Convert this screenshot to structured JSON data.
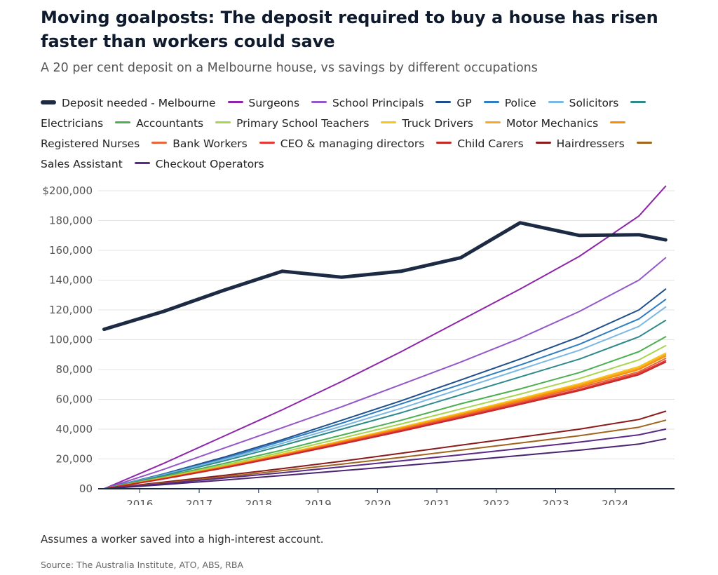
{
  "header": {
    "title": "Moving goalposts: The deposit required to buy a house has risen faster than workers could save",
    "subtitle": "A 20 per cent deposit on a Melbourne house, vs savings by different occupations"
  },
  "footer": {
    "note": "Assumes a worker saved into a high-interest account.",
    "source": "Source: The Australia Institute, ATO, ABS, RBA"
  },
  "chart_data": {
    "type": "line",
    "title": "Moving goalposts: The deposit required to buy a house has risen faster than workers could save",
    "subtitle": "A 20 per cent deposit on a Melbourne house, vs savings by different occupations",
    "xlabel": "",
    "ylabel": "",
    "xlim": [
      2015.3,
      2025.0
    ],
    "ylim": [
      0,
      200000
    ],
    "x_ticks": [
      "2016",
      "2017",
      "2018",
      "2019",
      "2020",
      "2021",
      "2022",
      "2023",
      "2024"
    ],
    "y_ticks": [
      "00",
      "20,000",
      "40,000",
      "60,000",
      "80,000",
      "100,000",
      "120,000",
      "140,000",
      "160,000",
      "180,000",
      "$200,000"
    ],
    "grid": "horizontal",
    "legend_position": "top",
    "x": [
      2015.4,
      2016.4,
      2017.4,
      2018.4,
      2019.4,
      2020.4,
      2021.4,
      2022.4,
      2023.4,
      2024.4,
      2024.85
    ],
    "series": [
      {
        "name": "Deposit needed - Melbourne",
        "color": "#1c2a44",
        "width": 5,
        "values": [
          107000,
          119000,
          133000,
          146000,
          142000,
          146000,
          155000,
          178500,
          170000,
          170500,
          167000
        ]
      },
      {
        "name": "Surgeons",
        "color": "#8e24aa",
        "width": 2,
        "values": [
          0,
          17000,
          35000,
          53000,
          72000,
          92000,
          113000,
          134000,
          156000,
          183000,
          203000
        ]
      },
      {
        "name": "School Principals",
        "color": "#9457c9",
        "width": 2,
        "values": [
          0,
          13000,
          27000,
          41000,
          55000,
          70000,
          85000,
          101000,
          119000,
          140000,
          155000
        ]
      },
      {
        "name": "GP",
        "color": "#1f4e8c",
        "width": 2,
        "values": [
          0,
          10000,
          21000,
          33000,
          46000,
          59000,
          73000,
          87000,
          102000,
          120000,
          134000
        ]
      },
      {
        "name": "Police",
        "color": "#2f7ec2",
        "width": 2,
        "values": [
          0,
          9700,
          20000,
          32000,
          44000,
          57000,
          70000,
          83000,
          97000,
          114000,
          127000
        ]
      },
      {
        "name": "Solicitors",
        "color": "#7ab8e3",
        "width": 2,
        "values": [
          0,
          9300,
          19500,
          30500,
          42000,
          54000,
          67000,
          80000,
          93000,
          109000,
          122000
        ]
      },
      {
        "name": "Electricians",
        "color": "#2e8a8a",
        "width": 2,
        "values": [
          0,
          8800,
          18500,
          29000,
          40000,
          51000,
          63000,
          75000,
          87000,
          102000,
          113000
        ]
      },
      {
        "name": "Accountants",
        "color": "#4caf50",
        "width": 2,
        "values": [
          0,
          8000,
          16800,
          26000,
          36000,
          46000,
          57000,
          67000,
          78000,
          92000,
          102000
        ]
      },
      {
        "name": "Primary School Teachers",
        "color": "#a8d44e",
        "width": 2,
        "values": [
          0,
          7500,
          15700,
          24500,
          34000,
          43500,
          53500,
          63500,
          74000,
          86500,
          96000
        ]
      },
      {
        "name": "Truck Drivers",
        "color": "#f5c518",
        "width": 2,
        "values": [
          0,
          7100,
          14900,
          23300,
          32200,
          41300,
          50800,
          60500,
          70500,
          82000,
          91000
        ]
      },
      {
        "name": "Motor Mechanics",
        "color": "#f9a825",
        "width": 2,
        "values": [
          0,
          7000,
          14700,
          23000,
          31800,
          40800,
          50200,
          59800,
          69700,
          81000,
          90000
        ]
      },
      {
        "name": "Registered Nurses",
        "color": "#fb8c00",
        "width": 2,
        "values": [
          0,
          6900,
          14500,
          22700,
          31400,
          40300,
          49600,
          59100,
          68800,
          80000,
          89000
        ]
      },
      {
        "name": "Bank Workers",
        "color": "#e8663d",
        "width": 2,
        "values": [
          0,
          6800,
          14300,
          22300,
          30900,
          39700,
          48900,
          58200,
          67800,
          78500,
          87500
        ]
      },
      {
        "name": "CEO & managing directors",
        "color": "#e53935",
        "width": 2,
        "values": [
          0,
          6700,
          14000,
          22000,
          30400,
          39100,
          48100,
          57300,
          66700,
          77500,
          86000
        ]
      },
      {
        "name": "Child Carers",
        "color": "#c62828",
        "width": 2,
        "values": [
          0,
          6600,
          13800,
          21700,
          30000,
          38600,
          47500,
          56600,
          65900,
          76500,
          85000
        ]
      },
      {
        "name": "Hairdressers",
        "color": "#8b1a1a",
        "width": 2,
        "values": [
          0,
          4400,
          8900,
          13500,
          18500,
          23800,
          29200,
          34600,
          40000,
          46500,
          52000
        ]
      },
      {
        "name": "Sales Assistant",
        "color": "#a0641e",
        "width": 2,
        "values": [
          0,
          3800,
          7900,
          12200,
          16500,
          21100,
          25900,
          30700,
          35600,
          41300,
          46000
        ]
      },
      {
        "name": "Checkout Operators",
        "color": "#5b2a86",
        "width": 2,
        "values": [
          0,
          3400,
          7100,
          10800,
          14700,
          18700,
          22800,
          27000,
          31300,
          36200,
          40000
        ]
      },
      {
        "name": "",
        "color": "#4a2470",
        "width": 2,
        "values": [
          0,
          2800,
          5800,
          8900,
          12100,
          15400,
          18800,
          22300,
          25900,
          30000,
          33500
        ]
      }
    ]
  }
}
